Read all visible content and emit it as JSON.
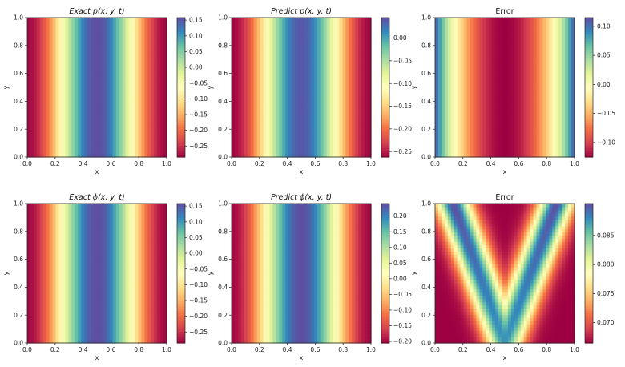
{
  "figure": {
    "description_colormap": "Spectral"
  },
  "chart_data": [
    {
      "type": "heatmap",
      "title": "Exact p(x, y, t)",
      "title_italic": true,
      "xlabel": "x",
      "ylabel": "y",
      "xlim": [
        0.0,
        1.0
      ],
      "ylim": [
        0.0,
        1.0
      ],
      "xticks": [
        "0.0",
        "0.2",
        "0.4",
        "0.6",
        "0.8",
        "1.0"
      ],
      "yticks": [
        "0.0",
        "0.2",
        "0.4",
        "0.6",
        "0.8",
        "1.0"
      ],
      "field": {
        "kind": "cos_x",
        "base": -0.06,
        "amp": 0.22
      },
      "colorbar": {
        "vmin": -0.285,
        "vmax": 0.158,
        "ticks": [
          0.15,
          0.1,
          0.05,
          0.0,
          -0.05,
          -0.1,
          -0.15,
          -0.2,
          -0.25
        ],
        "tick_labels": [
          "0.15",
          "0.10",
          "0.05",
          "0.00",
          "−0.05",
          "−0.10",
          "−0.15",
          "−0.20",
          "−0.25"
        ]
      }
    },
    {
      "type": "heatmap",
      "title": "Predict p(x, y, t)",
      "title_italic": true,
      "xlabel": "x",
      "ylabel": "y",
      "xlim": [
        0.0,
        1.0
      ],
      "ylim": [
        0.0,
        1.0
      ],
      "xticks": [
        "0.0",
        "0.2",
        "0.4",
        "0.6",
        "0.8",
        "1.0"
      ],
      "yticks": [
        "0.0",
        "0.2",
        "0.4",
        "0.6",
        "0.8",
        "1.0"
      ],
      "field": {
        "kind": "cos_x",
        "base": -0.11,
        "amp": 0.15
      },
      "colorbar": {
        "vmin": -0.262,
        "vmax": 0.045,
        "ticks": [
          0.0,
          -0.05,
          -0.1,
          -0.15,
          -0.2,
          -0.25
        ],
        "tick_labels": [
          "0.00",
          "−0.05",
          "−0.10",
          "−0.15",
          "−0.20",
          "−0.25"
        ]
      }
    },
    {
      "type": "heatmap",
      "title": "Error",
      "title_italic": false,
      "xlabel": "x",
      "ylabel": "y",
      "xlim": [
        0.0,
        1.0
      ],
      "ylim": [
        0.0,
        1.0
      ],
      "xticks": [
        "0.0",
        "0.2",
        "0.4",
        "0.6",
        "0.8",
        "1.0"
      ],
      "yticks": [
        "0.0",
        "0.2",
        "0.4",
        "0.6",
        "0.8",
        "1.0"
      ],
      "field": {
        "kind": "err_p"
      },
      "colorbar": {
        "vmin": -0.125,
        "vmax": 0.115,
        "ticks": [
          0.1,
          0.05,
          0.0,
          -0.05,
          -0.1
        ],
        "tick_labels": [
          "0.10",
          "0.05",
          "0.00",
          "−0.05",
          "−0.10"
        ]
      }
    },
    {
      "type": "heatmap",
      "title": "Exact ϕ(x, y, t)",
      "title_italic": true,
      "xlabel": "x",
      "ylabel": "y",
      "xlim": [
        0.0,
        1.0
      ],
      "ylim": [
        0.0,
        1.0
      ],
      "xticks": [
        "0.0",
        "0.2",
        "0.4",
        "0.6",
        "0.8",
        "1.0"
      ],
      "yticks": [
        "0.0",
        "0.2",
        "0.4",
        "0.6",
        "0.8",
        "1.0"
      ],
      "field": {
        "kind": "cos_x",
        "base": -0.06,
        "amp": 0.22
      },
      "colorbar": {
        "vmin": -0.285,
        "vmax": 0.158,
        "ticks": [
          0.15,
          0.1,
          0.05,
          0.0,
          -0.05,
          -0.1,
          -0.15,
          -0.2,
          -0.25
        ],
        "tick_labels": [
          "0.15",
          "0.10",
          "0.05",
          "0.00",
          "−0.05",
          "−0.10",
          "−0.15",
          "−0.20",
          "−0.25"
        ]
      }
    },
    {
      "type": "heatmap",
      "title": "Predict ϕ(x, y, t)",
      "title_italic": true,
      "xlabel": "x",
      "ylabel": "y",
      "xlim": [
        0.0,
        1.0
      ],
      "ylim": [
        0.0,
        1.0
      ],
      "xticks": [
        "0.0",
        "0.2",
        "0.4",
        "0.6",
        "0.8",
        "1.0"
      ],
      "yticks": [
        "0.0",
        "0.2",
        "0.4",
        "0.6",
        "0.8",
        "1.0"
      ],
      "field": {
        "kind": "cos_x",
        "base": 0.02,
        "amp": 0.22
      },
      "colorbar": {
        "vmin": -0.205,
        "vmax": 0.24,
        "ticks": [
          0.2,
          0.15,
          0.1,
          0.05,
          0.0,
          -0.05,
          -0.1,
          -0.15,
          -0.2
        ],
        "tick_labels": [
          "0.20",
          "0.15",
          "0.10",
          "0.05",
          "0.00",
          "−0.05",
          "−0.10",
          "−0.15",
          "−0.20"
        ]
      }
    },
    {
      "type": "heatmap",
      "title": "Error",
      "title_italic": false,
      "xlabel": "x",
      "ylabel": "y",
      "xlim": [
        0.0,
        1.0
      ],
      "ylim": [
        0.0,
        1.0
      ],
      "xticks": [
        "0.0",
        "0.2",
        "0.4",
        "0.6",
        "0.8",
        "1.0"
      ],
      "yticks": [
        "0.0",
        "0.2",
        "0.4",
        "0.6",
        "0.8",
        "1.0"
      ],
      "field": {
        "kind": "err_phi"
      },
      "colorbar": {
        "vmin": 0.0665,
        "vmax": 0.0905,
        "ticks": [
          0.085,
          0.08,
          0.075,
          0.07
        ],
        "tick_labels": [
          "0.085",
          "0.080",
          "0.075",
          "0.070"
        ]
      }
    }
  ]
}
